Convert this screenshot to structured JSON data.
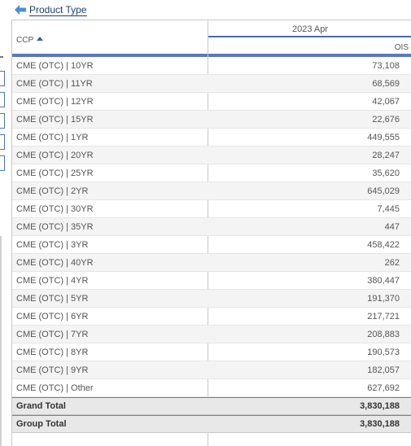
{
  "nav": {
    "back_label": "Product Type"
  },
  "table": {
    "columns": {
      "row_header": "CCP",
      "period": "2023 Apr",
      "measure": "OIS"
    },
    "rows": [
      {
        "label": "CME (OTC) | 10YR",
        "value": "73,108"
      },
      {
        "label": "CME (OTC) | 11YR",
        "value": "68,569"
      },
      {
        "label": "CME (OTC) | 12YR",
        "value": "42,067"
      },
      {
        "label": "CME (OTC) | 15YR",
        "value": "22,676"
      },
      {
        "label": "CME (OTC) | 1YR",
        "value": "449,555"
      },
      {
        "label": "CME (OTC) | 20YR",
        "value": "28,247"
      },
      {
        "label": "CME (OTC) | 25YR",
        "value": "35,620"
      },
      {
        "label": "CME (OTC) | 2YR",
        "value": "645,029"
      },
      {
        "label": "CME (OTC) | 30YR",
        "value": "7,445"
      },
      {
        "label": "CME (OTC) | 35YR",
        "value": "447"
      },
      {
        "label": "CME (OTC) | 3YR",
        "value": "458,422"
      },
      {
        "label": "CME (OTC) | 40YR",
        "value": "262"
      },
      {
        "label": "CME (OTC) | 4YR",
        "value": "380,447"
      },
      {
        "label": "CME (OTC) | 5YR",
        "value": "191,370"
      },
      {
        "label": "CME (OTC) | 6YR",
        "value": "217,721"
      },
      {
        "label": "CME (OTC) | 7YR",
        "value": "208,883"
      },
      {
        "label": "CME (OTC) | 8YR",
        "value": "190,573"
      },
      {
        "label": "CME (OTC) | 9YR",
        "value": "182,057"
      },
      {
        "label": "CME (OTC) | Other",
        "value": "627,692"
      }
    ],
    "grand_total": {
      "label": "Grand Total",
      "value": "3,830,188"
    },
    "group_total": {
      "label": "Group Total",
      "value": "3,830,188"
    }
  },
  "colors": {
    "accent": "#5b78c2",
    "link": "#1f3f73",
    "arrow": "#4a90d9"
  }
}
